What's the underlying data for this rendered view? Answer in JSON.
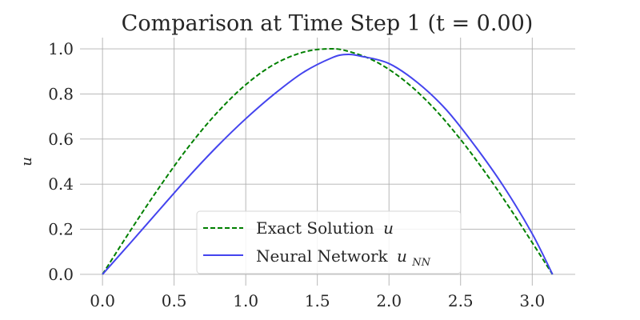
{
  "chart_data": {
    "type": "line",
    "title": "Comparison at Time Step 1 (t = 0.00)",
    "xlabel": "",
    "ylabel": "u",
    "xlim": [
      -0.157,
      3.3
    ],
    "ylim": [
      -0.05,
      1.05
    ],
    "x_ticks": [
      0.0,
      0.5,
      1.0,
      1.5,
      2.0,
      2.5,
      3.0
    ],
    "x_tick_labels": [
      "0.0",
      "0.5",
      "1.0",
      "1.5",
      "2.0",
      "2.5",
      "3.0"
    ],
    "y_ticks": [
      0.0,
      0.2,
      0.4,
      0.6,
      0.8,
      1.0
    ],
    "y_tick_labels": [
      "0.0",
      "0.2",
      "0.4",
      "0.6",
      "0.8",
      "1.0"
    ],
    "grid": true,
    "legend_position": "lower center",
    "series": [
      {
        "name": "Exact Solution",
        "symbol": "u",
        "color": "#008000",
        "style": "dashed",
        "x": [
          0.0,
          0.2,
          0.4,
          0.6,
          0.8,
          1.0,
          1.2,
          1.4,
          1.5708,
          1.7,
          1.9,
          2.1,
          2.3,
          2.5,
          2.7,
          2.9,
          3.1416
        ],
        "y": [
          0.0,
          0.199,
          0.389,
          0.565,
          0.717,
          0.841,
          0.932,
          0.985,
          1.0,
          0.992,
          0.946,
          0.863,
          0.746,
          0.598,
          0.427,
          0.239,
          0.0
        ]
      },
      {
        "name": "Neural Network",
        "symbol": "u",
        "subscript": "NN",
        "color": "#4444ee",
        "style": "solid",
        "x": [
          0.0,
          0.2,
          0.4,
          0.6,
          0.8,
          1.0,
          1.2,
          1.4,
          1.6,
          1.7,
          1.8,
          2.0,
          2.2,
          2.4,
          2.6,
          2.8,
          3.0,
          3.1416
        ],
        "y": [
          0.0,
          0.143,
          0.288,
          0.432,
          0.567,
          0.69,
          0.8,
          0.895,
          0.96,
          0.975,
          0.968,
          0.935,
          0.85,
          0.73,
          0.57,
          0.39,
          0.18,
          0.0
        ]
      }
    ]
  }
}
